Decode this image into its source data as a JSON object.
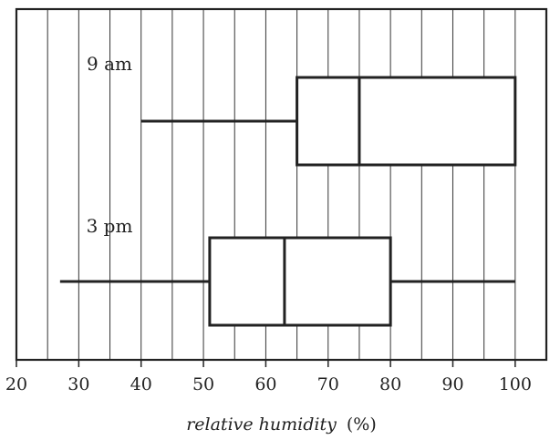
{
  "chart_data": {
    "type": "boxplot",
    "orientation": "horizontal",
    "xlabel": "relative humidity",
    "xlabel_unit": "(%)",
    "xlim": [
      20,
      105
    ],
    "x_ticks": [
      20,
      30,
      40,
      50,
      60,
      70,
      80,
      90,
      100
    ],
    "x_tick_labels": [
      "20",
      "30",
      "40",
      "50",
      "60",
      "70",
      "80",
      "90",
      "100"
    ],
    "vertical_gridlines": [
      25,
      30,
      35,
      40,
      45,
      50,
      55,
      60,
      65,
      70,
      75,
      80,
      85,
      90,
      95,
      100
    ],
    "grid": true,
    "series": [
      {
        "name": "9 am",
        "min": 40,
        "q1": 65,
        "median": 75,
        "q3": 100,
        "max": 100
      },
      {
        "name": "3 pm",
        "min": 27,
        "q1": 51,
        "median": 63,
        "q3": 80,
        "max": 100
      }
    ]
  }
}
